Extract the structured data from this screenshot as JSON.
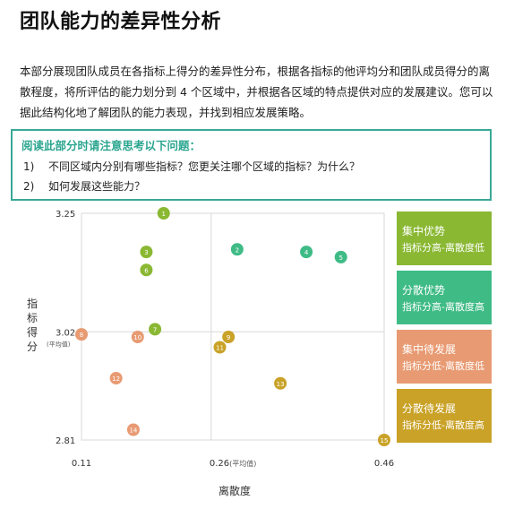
{
  "title": "团队能力的差异性分析",
  "intro": "本部分展现团队成员在各指标上得分的差异性分布，根据各指标的他评均分和团队成员得分的离散程度，将所评估的能力划分到 4 个区域中，并根据各区域的特点提供对应的发展建议。您可以据此结构化地了解团队的能力表现，并找到相应发展策略。",
  "questions": {
    "title": "阅读此部分时请注意思考以下问题：",
    "items": [
      {
        "num": "1)",
        "text": "不同区域内分别有哪些指标？您更关注哪个区域的指标？为什么？"
      },
      {
        "num": "2)",
        "text": "如何发展这些能力？"
      }
    ]
  },
  "legend": [
    {
      "line1": "集中优势",
      "line2": "指标分高-离散度低",
      "color": "#8ab833"
    },
    {
      "line1": "分散优势",
      "line2": "指标分高-离散度高",
      "color": "#3fbb86"
    },
    {
      "line1": "集中待发展",
      "line2": "指标分低-离散度低",
      "color": "#e89a72"
    },
    {
      "line1": "分散待发展",
      "line2": "指标分低-离散度高",
      "color": "#c9a227"
    }
  ],
  "chart_data": {
    "type": "scatter",
    "xlabel": "离散度",
    "ylabel": "指标得分",
    "xlim": [
      0.11,
      0.46
    ],
    "ylim": [
      2.81,
      3.25
    ],
    "x_ticks": [
      {
        "value": 0.11,
        "label": "0.11"
      },
      {
        "value": 0.26,
        "label": "0.26",
        "suffix": "(平均值)"
      },
      {
        "value": 0.46,
        "label": "0.46"
      }
    ],
    "y_ticks": [
      {
        "value": 3.25,
        "label": "3.25"
      },
      {
        "value": 3.02,
        "label": "3.02",
        "suffix": "(平均值)"
      },
      {
        "value": 2.81,
        "label": "2.81"
      }
    ],
    "ref_x": 0.26,
    "ref_y": 3.02,
    "points": [
      {
        "id": "1",
        "x": 0.205,
        "y": 3.25,
        "group": 0
      },
      {
        "id": "2",
        "x": 0.29,
        "y": 3.18,
        "group": 1
      },
      {
        "id": "3",
        "x": 0.185,
        "y": 3.175,
        "group": 0
      },
      {
        "id": "4",
        "x": 0.37,
        "y": 3.175,
        "group": 1
      },
      {
        "id": "5",
        "x": 0.41,
        "y": 3.165,
        "group": 1
      },
      {
        "id": "6",
        "x": 0.185,
        "y": 3.14,
        "group": 0
      },
      {
        "id": "7",
        "x": 0.195,
        "y": 3.025,
        "group": 0
      },
      {
        "id": "8",
        "x": 0.11,
        "y": 3.015,
        "group": 2
      },
      {
        "id": "9",
        "x": 0.28,
        "y": 3.01,
        "group": 3
      },
      {
        "id": "10",
        "x": 0.175,
        "y": 3.01,
        "group": 2
      },
      {
        "id": "11",
        "x": 0.27,
        "y": 2.99,
        "group": 3
      },
      {
        "id": "12",
        "x": 0.15,
        "y": 2.93,
        "group": 2
      },
      {
        "id": "13",
        "x": 0.34,
        "y": 2.92,
        "group": 3
      },
      {
        "id": "14",
        "x": 0.17,
        "y": 2.83,
        "group": 2
      },
      {
        "id": "15",
        "x": 0.46,
        "y": 2.81,
        "group": 3
      }
    ]
  }
}
